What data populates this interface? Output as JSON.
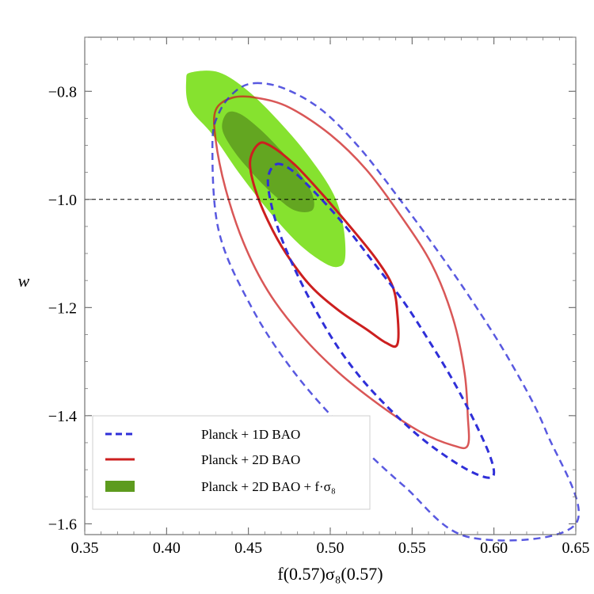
{
  "chart_data": {
    "type": "contour",
    "xlabel": "f(0.57)σ₈(0.57)",
    "ylabel": "w",
    "xlim": [
      0.35,
      0.65
    ],
    "ylim": [
      -1.62,
      -0.7
    ],
    "x_ticks": [
      0.35,
      0.4,
      0.45,
      0.5,
      0.55,
      0.6,
      0.65
    ],
    "x_tick_labels": [
      "0.35",
      "0.40",
      "0.45",
      "0.50",
      "0.55",
      "0.60",
      "0.65"
    ],
    "y_ticks": [
      -0.8,
      -1.0,
      -1.2,
      -1.4,
      -1.6
    ],
    "y_tick_labels": [
      "−0.8",
      "−1.0",
      "−1.2",
      "−1.4",
      "−1.6"
    ],
    "reference_line": {
      "w": -1.0,
      "style": "dashed",
      "color": "#000000"
    },
    "legend_position": "bottom-left",
    "series": [
      {
        "name": "Planck + 1D BAO",
        "style": "dashed",
        "color": "#2f2fd8",
        "contours": [
          {
            "level": "68%",
            "points": [
              [
                0.467,
                -0.935
              ],
              [
                0.476,
                -0.945
              ],
              [
                0.49,
                -0.985
              ],
              [
                0.508,
                -1.045
              ],
              [
                0.526,
                -1.115
              ],
              [
                0.545,
                -1.19
              ],
              [
                0.56,
                -1.26
              ],
              [
                0.575,
                -1.335
              ],
              [
                0.588,
                -1.41
              ],
              [
                0.597,
                -1.47
              ],
              [
                0.6,
                -1.505
              ],
              [
                0.597,
                -1.515
              ],
              [
                0.587,
                -1.505
              ],
              [
                0.573,
                -1.48
              ],
              [
                0.555,
                -1.44
              ],
              [
                0.537,
                -1.39
              ],
              [
                0.52,
                -1.335
              ],
              [
                0.505,
                -1.275
              ],
              [
                0.492,
                -1.21
              ],
              [
                0.48,
                -1.14
              ],
              [
                0.47,
                -1.07
              ],
              [
                0.464,
                -1.01
              ],
              [
                0.462,
                -0.96
              ],
              [
                0.467,
                -0.935
              ]
            ]
          },
          {
            "level": "95%",
            "points": [
              [
                0.454,
                -0.785
              ],
              [
                0.472,
                -0.795
              ],
              [
                0.495,
                -0.835
              ],
              [
                0.518,
                -0.905
              ],
              [
                0.54,
                -0.99
              ],
              [
                0.562,
                -1.08
              ],
              [
                0.585,
                -1.18
              ],
              [
                0.61,
                -1.3
              ],
              [
                0.632,
                -1.43
              ],
              [
                0.65,
                -1.6
              ],
              [
                0.585,
                -1.625
              ],
              [
                0.545,
                -1.53
              ],
              [
                0.51,
                -1.43
              ],
              [
                0.478,
                -1.32
              ],
              [
                0.452,
                -1.2
              ],
              [
                0.432,
                -1.06
              ],
              [
                0.428,
                -0.9
              ],
              [
                0.432,
                -0.84
              ],
              [
                0.442,
                -0.8
              ],
              [
                0.454,
                -0.785
              ]
            ]
          }
        ]
      },
      {
        "name": "Planck + 2D BAO",
        "style": "solid",
        "color": "#cc1f1f",
        "contours": [
          {
            "level": "68%",
            "points": [
              [
                0.456,
                -0.898
              ],
              [
                0.463,
                -0.9
              ],
              [
                0.478,
                -0.935
              ],
              [
                0.495,
                -0.99
              ],
              [
                0.512,
                -1.05
              ],
              [
                0.528,
                -1.11
              ],
              [
                0.538,
                -1.16
              ],
              [
                0.541,
                -1.21
              ],
              [
                0.541,
                -1.268
              ],
              [
                0.534,
                -1.265
              ],
              [
                0.522,
                -1.24
              ],
              [
                0.505,
                -1.205
              ],
              [
                0.488,
                -1.16
              ],
              [
                0.473,
                -1.1
              ],
              [
                0.462,
                -1.04
              ],
              [
                0.454,
                -0.98
              ],
              [
                0.451,
                -0.93
              ],
              [
                0.456,
                -0.898
              ]
            ]
          },
          {
            "level": "95%",
            "points": [
              [
                0.44,
                -0.812
              ],
              [
                0.455,
                -0.812
              ],
              [
                0.475,
                -0.83
              ],
              [
                0.5,
                -0.88
              ],
              [
                0.522,
                -0.945
              ],
              [
                0.543,
                -1.03
              ],
              [
                0.562,
                -1.12
              ],
              [
                0.575,
                -1.22
              ],
              [
                0.582,
                -1.32
              ],
              [
                0.584,
                -1.4
              ],
              [
                0.584,
                -1.455
              ],
              [
                0.575,
                -1.455
              ],
              [
                0.555,
                -1.43
              ],
              [
                0.53,
                -1.38
              ],
              [
                0.505,
                -1.32
              ],
              [
                0.482,
                -1.25
              ],
              [
                0.462,
                -1.17
              ],
              [
                0.447,
                -1.08
              ],
              [
                0.436,
                -0.98
              ],
              [
                0.43,
                -0.89
              ],
              [
                0.43,
                -0.835
              ],
              [
                0.44,
                -0.812
              ]
            ]
          }
        ]
      },
      {
        "name": "Planck + 2D BAO + f·σ₈",
        "style": "filled",
        "color": "#5d9b1e",
        "inner_color": "#5d9b1e",
        "outer_color": "#86e22f",
        "contours": [
          {
            "level": "95%",
            "points": [
              [
                0.415,
                -0.765
              ],
              [
                0.432,
                -0.765
              ],
              [
                0.45,
                -0.8
              ],
              [
                0.47,
                -0.86
              ],
              [
                0.488,
                -0.925
              ],
              [
                0.502,
                -0.99
              ],
              [
                0.508,
                -1.05
              ],
              [
                0.509,
                -1.11
              ],
              [
                0.504,
                -1.125
              ],
              [
                0.495,
                -1.115
              ],
              [
                0.48,
                -1.08
              ],
              [
                0.462,
                -1.02
              ],
              [
                0.444,
                -0.95
              ],
              [
                0.428,
                -0.88
              ],
              [
                0.414,
                -0.83
              ],
              [
                0.412,
                -0.78
              ],
              [
                0.415,
                -0.765
              ]
            ]
          },
          {
            "level": "68%",
            "points": [
              [
                0.437,
                -0.84
              ],
              [
                0.445,
                -0.842
              ],
              [
                0.457,
                -0.87
              ],
              [
                0.47,
                -0.91
              ],
              [
                0.481,
                -0.95
              ],
              [
                0.489,
                -0.99
              ],
              [
                0.489,
                -1.02
              ],
              [
                0.478,
                -1.02
              ],
              [
                0.465,
                -0.99
              ],
              [
                0.452,
                -0.95
              ],
              [
                0.441,
                -0.91
              ],
              [
                0.434,
                -0.87
              ],
              [
                0.437,
                -0.84
              ]
            ]
          }
        ]
      }
    ]
  }
}
